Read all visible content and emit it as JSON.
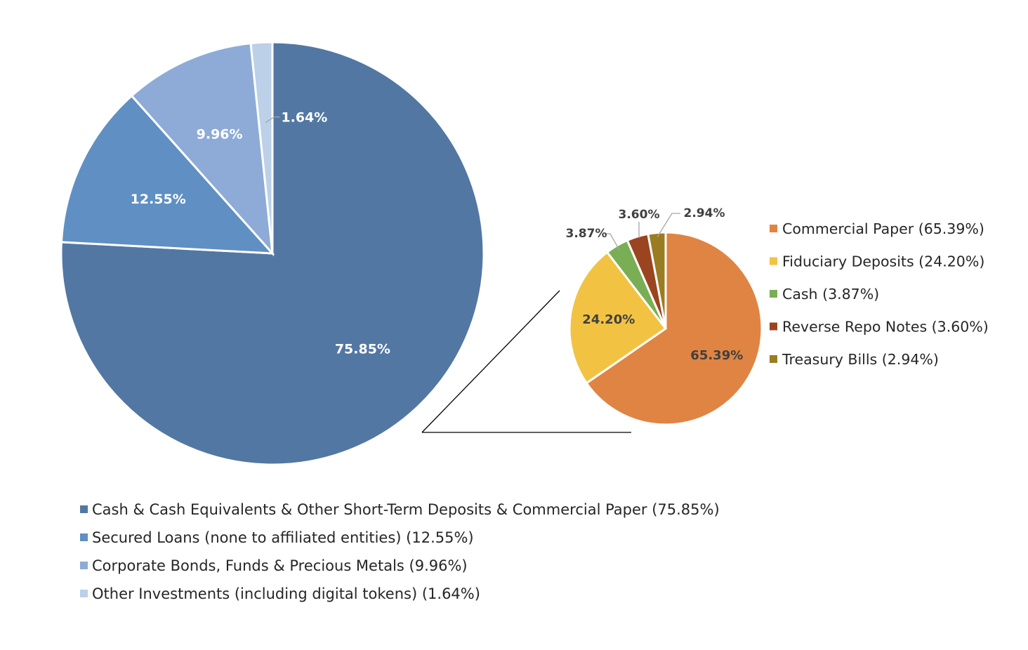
{
  "chart_data": [
    {
      "type": "pie",
      "title": "",
      "colors": [
        "#5277a3",
        "#5f8fc3",
        "#8dabd6",
        "#bcd0e7"
      ],
      "slices": [
        {
          "label": "Cash & Cash Equivalents & Other Short-Term Deposits & Commercial Paper (75.85%)",
          "value": 75.85,
          "data_label": "75.85%"
        },
        {
          "label": "Secured Loans (none to affiliated entities) (12.55%)",
          "value": 12.55,
          "data_label": "12.55%"
        },
        {
          "label": "Corporate Bonds, Funds & Precious Metals (9.96%)",
          "value": 9.96,
          "data_label": "9.96%"
        },
        {
          "label": "Other Investments (including digital tokens) (1.64%)",
          "value": 1.64,
          "data_label": "1.64%"
        }
      ],
      "legend_position": "bottom"
    },
    {
      "type": "pie",
      "title": "",
      "colors": [
        "#e08443",
        "#f2c343",
        "#7aae54",
        "#9a4520",
        "#9a7d22"
      ],
      "slices": [
        {
          "label": "Commercial Paper (65.39%)",
          "value": 65.39,
          "data_label": "65.39%"
        },
        {
          "label": "Fiduciary Deposits (24.20%)",
          "value": 24.2,
          "data_label": "24.20%"
        },
        {
          "label": "Cash (3.87%)",
          "value": 3.87,
          "data_label": "3.87%"
        },
        {
          "label": "Reverse Repo Notes (3.60%)",
          "value": 3.6,
          "data_label": "3.60%"
        },
        {
          "label": "Treasury Bills (2.94%)",
          "value": 2.94,
          "data_label": "2.94%"
        }
      ],
      "legend_position": "right"
    }
  ]
}
